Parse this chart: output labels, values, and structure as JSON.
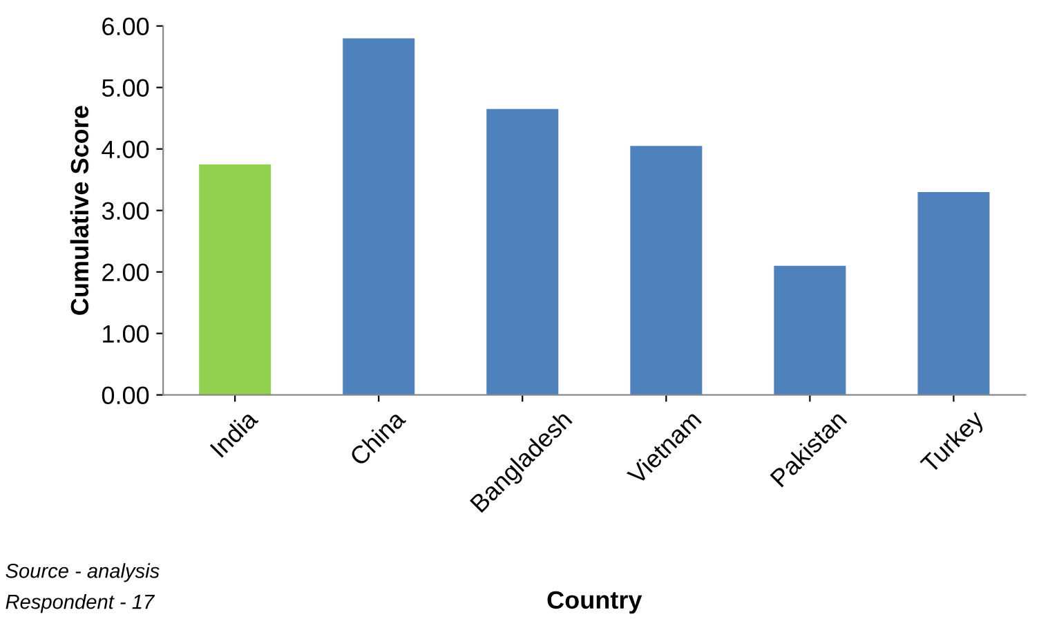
{
  "chart_data": {
    "type": "bar",
    "xlabel": "Country",
    "ylabel": "Cumulative Score",
    "categories": [
      "India",
      "China",
      "Bangladesh",
      "Vietnam",
      "Pakistan",
      "Turkey"
    ],
    "values": [
      3.75,
      5.8,
      4.65,
      4.05,
      2.1,
      3.3
    ],
    "colors": [
      "#92d050",
      "#4f81bd",
      "#4f81bd",
      "#4f81bd",
      "#4f81bd",
      "#4f81bd"
    ],
    "ylim": [
      0,
      6
    ],
    "yticks": [
      {
        "value": 0,
        "label": "0.00"
      },
      {
        "value": 1,
        "label": "1.00"
      },
      {
        "value": 2,
        "label": "2.00"
      },
      {
        "value": 3,
        "label": "3.00"
      },
      {
        "value": 4,
        "label": "4.00"
      },
      {
        "value": 5,
        "label": "5.00"
      },
      {
        "value": 6,
        "label": "6.00"
      }
    ],
    "grid": false,
    "legend": false,
    "annotations": [
      "Source - analysis",
      "Respondent - 17"
    ]
  }
}
